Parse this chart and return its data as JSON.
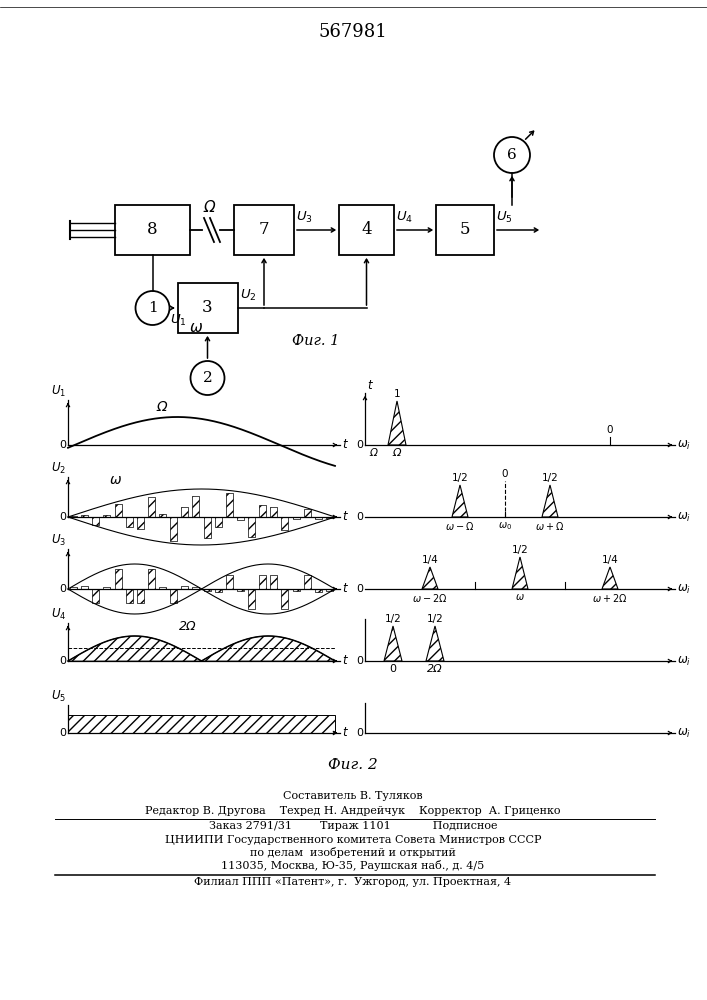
{
  "title": "567981",
  "bg_color": "#ffffff",
  "fig1_caption": "Фиг. 1",
  "fig2_caption": "Фиг. 2",
  "footer": {
    "line1": "Составитель В. Туляков",
    "line2": "Редактор В. Другова    Техред Н. Андрейчук    Корректор  А. Гриценко",
    "line3": "Заказ 2791/31        Тираж 1101            Подписное",
    "line4": "ЦНИИПИ Государственного комитета Совета Министров СССР",
    "line5": "по делам  изобретений и открытий",
    "line6": "113035, Москва, Ю-35, Раушская наб., д. 4/5",
    "line7": "Филиал ППП «Патент», г.  Ужгород, ул. Проектная, 4"
  }
}
